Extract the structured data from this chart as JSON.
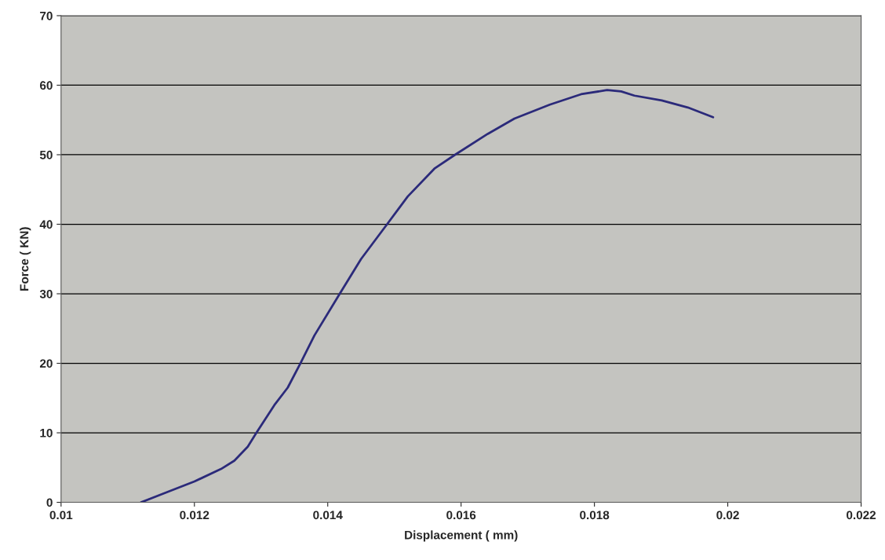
{
  "chart_data": {
    "type": "line",
    "xlabel": "Displacement ( mm)",
    "ylabel": "Force ( KN)",
    "xlim": [
      0.01,
      0.022
    ],
    "xticks": [
      0.01,
      0.012,
      0.014,
      0.016,
      0.018,
      0.02,
      0.022
    ],
    "ylim": [
      0,
      70
    ],
    "yticks": [
      0,
      10,
      20,
      30,
      40,
      50,
      60,
      70
    ],
    "grid": "y",
    "marker": "none",
    "line_style": "solid",
    "series": [
      {
        "color": "#2b2a7a",
        "x": [
          0.0112,
          0.0116,
          0.012,
          0.0124,
          0.0126,
          0.0128,
          0.01293,
          0.0132,
          0.0134,
          0.01359,
          0.0138,
          0.01418,
          0.0145,
          0.01489,
          0.0152,
          0.0156,
          0.01591,
          0.0164,
          0.0168,
          0.01733,
          0.0178,
          0.01819,
          0.0184,
          0.0186,
          0.01901,
          0.0194,
          0.01978
        ],
        "values": [
          0,
          1.5,
          3,
          4.8,
          6,
          8,
          10,
          14,
          16.5,
          20,
          24,
          30,
          35,
          40,
          44,
          48,
          50,
          53,
          55.2,
          57.2,
          58.7,
          59.3,
          59.1,
          58.5,
          57.8,
          56.8,
          55.4
        ]
      }
    ]
  }
}
